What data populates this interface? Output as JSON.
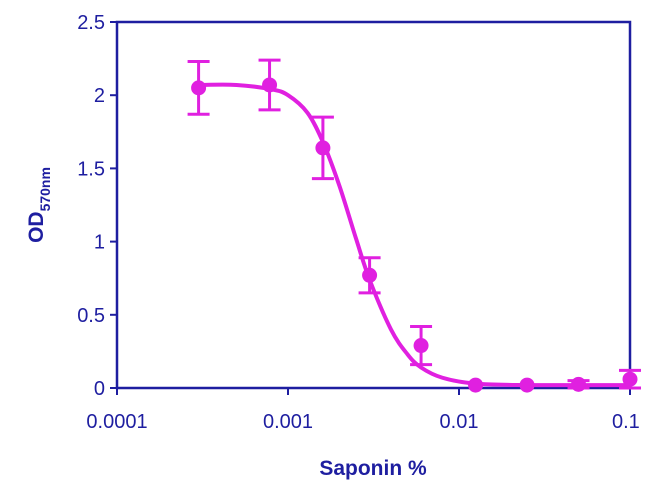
{
  "chart_data": {
    "type": "scatter",
    "xlabel": "Saponin %",
    "ylabel_main": "OD",
    "ylabel_sub": "570nm",
    "xscale": "log",
    "xlim": [
      0.0001,
      0.1
    ],
    "ylim": [
      0,
      2.5
    ],
    "x_ticks": [
      0.0001,
      0.001,
      0.01,
      0.1
    ],
    "x_tick_labels": [
      "0.0001",
      "0.001",
      "0.01",
      "0.1"
    ],
    "y_ticks": [
      0,
      0.5,
      1,
      1.5,
      2,
      2.5
    ],
    "y_tick_labels": [
      "0",
      "0.5",
      "1",
      "1.5",
      "2",
      "2.5"
    ],
    "grid": false,
    "legend": false,
    "series": [
      {
        "color": "#e020e0",
        "points": [
          {
            "x": 0.0003,
            "y": 2.05,
            "err": 0.18
          },
          {
            "x": 0.00078,
            "y": 2.07,
            "err": 0.17
          },
          {
            "x": 0.0016,
            "y": 1.64,
            "err": 0.21
          },
          {
            "x": 0.003,
            "y": 0.77,
            "err": 0.12
          },
          {
            "x": 0.006,
            "y": 0.29,
            "err": 0.13
          },
          {
            "x": 0.0125,
            "y": 0.02,
            "err": 0.0
          },
          {
            "x": 0.025,
            "y": 0.02,
            "err": 0.0
          },
          {
            "x": 0.05,
            "y": 0.025,
            "err": 0.025
          },
          {
            "x": 0.1,
            "y": 0.06,
            "err": 0.06
          }
        ],
        "fit_curve": [
          [
            0.0003,
            2.07
          ],
          [
            0.0005,
            2.07
          ],
          [
            0.0008,
            2.04
          ],
          [
            0.001,
            2.0
          ],
          [
            0.0013,
            1.88
          ],
          [
            0.0016,
            1.68
          ],
          [
            0.002,
            1.38
          ],
          [
            0.0025,
            1.02
          ],
          [
            0.003,
            0.74
          ],
          [
            0.004,
            0.4
          ],
          [
            0.005,
            0.23
          ],
          [
            0.006,
            0.14
          ],
          [
            0.008,
            0.07
          ],
          [
            0.0125,
            0.03
          ],
          [
            0.025,
            0.02
          ],
          [
            0.05,
            0.02
          ],
          [
            0.1,
            0.02
          ]
        ]
      }
    ]
  },
  "colors": {
    "axis": "#1e1ea0",
    "series": "#e020e0"
  }
}
